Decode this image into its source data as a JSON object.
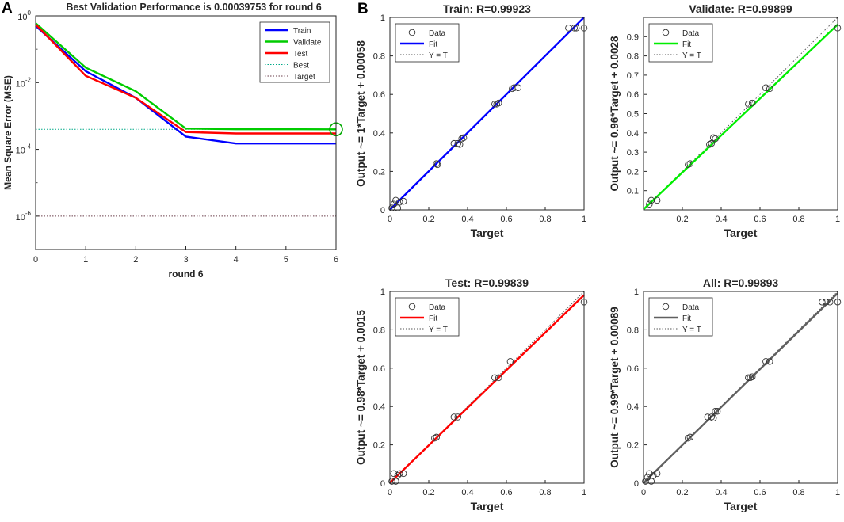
{
  "panels": {
    "a": "A",
    "b": "B"
  },
  "chart_data": [
    {
      "type": "line",
      "title": "Best Validation Performance is 0.00039753 for round 6",
      "xlabel": "round 6",
      "ylabel": "Mean Square Error (MSE)",
      "yscale": "log",
      "xlim": [
        0,
        6
      ],
      "ylim_exp": [
        -7,
        0
      ],
      "x_ticks": [
        "0",
        "1",
        "2",
        "3",
        "4",
        "5",
        "6"
      ],
      "y_ticks": [
        {
          "base": "10",
          "exp": "0",
          "exp_value": 0
        },
        {
          "base": "10",
          "exp": "-2",
          "exp_value": -2
        },
        {
          "base": "10",
          "exp": "-4",
          "exp_value": -4
        },
        {
          "base": "10",
          "exp": "-6",
          "exp_value": -6
        }
      ],
      "x": [
        0,
        1,
        2,
        3,
        4,
        5,
        6
      ],
      "series": [
        {
          "name": "Train",
          "color": "#0000ff",
          "style": "solid",
          "values": [
            0.5,
            0.022,
            0.0035,
            0.00024,
            0.00015,
            0.00015,
            0.00015
          ]
        },
        {
          "name": "Validate",
          "color": "#00cc00",
          "style": "solid",
          "values": [
            0.6,
            0.028,
            0.0055,
            0.00042,
            0.0004,
            0.0004,
            0.00039753
          ]
        },
        {
          "name": "Test",
          "color": "#ff0000",
          "style": "solid",
          "values": [
            0.55,
            0.016,
            0.0035,
            0.00033,
            0.0003,
            0.0003,
            0.0003
          ]
        },
        {
          "name": "Best",
          "color": "#00aa88",
          "style": "dotted"
        },
        {
          "name": "Target",
          "color": "#6a3d4a",
          "style": "dotted"
        }
      ],
      "best": {
        "x": 6,
        "value": 0.00039753
      },
      "target_value": 1e-06,
      "legend_position": "top-right"
    },
    {
      "type": "scatter",
      "title": "Train: R=0.99923",
      "xlabel": "Target",
      "ylabel": "Output ~= 1*Target + 0.00058",
      "fit_slope": 1,
      "fit_intercept": 0.00058,
      "fit_color": "#0000ff",
      "xlim": [
        0,
        1
      ],
      "ylim": [
        0,
        1
      ],
      "x_ticks": [
        "0",
        "0.2",
        "0.4",
        "0.6",
        "0.8",
        "1"
      ],
      "y_ticks": [
        "0",
        "0.2",
        "0.4",
        "0.6",
        "0.8",
        "1"
      ],
      "legend": [
        "Data",
        "Fit",
        "Y = T"
      ],
      "legend_position": "top-left",
      "points": [
        [
          0.01,
          0.01
        ],
        [
          0.02,
          0.03
        ],
        [
          0.03,
          0.05
        ],
        [
          0.04,
          0.01
        ],
        [
          0.05,
          0.04
        ],
        [
          0.07,
          0.045
        ],
        [
          0.24,
          0.24
        ],
        [
          0.245,
          0.235
        ],
        [
          0.33,
          0.345
        ],
        [
          0.35,
          0.345
        ],
        [
          0.36,
          0.34
        ],
        [
          0.37,
          0.37
        ],
        [
          0.38,
          0.375
        ],
        [
          0.54,
          0.55
        ],
        [
          0.55,
          0.55
        ],
        [
          0.56,
          0.555
        ],
        [
          0.63,
          0.63
        ],
        [
          0.64,
          0.635
        ],
        [
          0.66,
          0.635
        ],
        [
          0.92,
          0.945
        ],
        [
          0.95,
          0.945
        ],
        [
          0.96,
          0.945
        ],
        [
          1.0,
          0.945
        ]
      ]
    },
    {
      "type": "scatter",
      "title": "Validate: R=0.99899",
      "xlabel": "Target",
      "ylabel": "Output ~= 0.96*Target + 0.0028",
      "fit_slope": 0.96,
      "fit_intercept": 0.0028,
      "fit_color": "#00ee00",
      "xlim": [
        0,
        1
      ],
      "ylim": [
        0,
        1
      ],
      "x_ticks": [
        "0.2",
        "0.4",
        "0.6",
        "0.8",
        "1"
      ],
      "y_ticks": [
        "0.1",
        "0.2",
        "0.3",
        "0.4",
        "0.5",
        "0.6",
        "0.7",
        "0.8",
        "0.9"
      ],
      "legend": [
        "Data",
        "Fit",
        "Y = T"
      ],
      "legend_position": "top-left",
      "points": [
        [
          0.03,
          0.03
        ],
        [
          0.04,
          0.05
        ],
        [
          0.07,
          0.05
        ],
        [
          0.23,
          0.235
        ],
        [
          0.24,
          0.24
        ],
        [
          0.34,
          0.34
        ],
        [
          0.35,
          0.345
        ],
        [
          0.36,
          0.375
        ],
        [
          0.37,
          0.37
        ],
        [
          0.54,
          0.55
        ],
        [
          0.56,
          0.555
        ],
        [
          0.63,
          0.635
        ],
        [
          0.65,
          0.63
        ],
        [
          1.0,
          0.945
        ]
      ]
    },
    {
      "type": "scatter",
      "title": "Test: R=0.99839",
      "xlabel": "Target",
      "ylabel": "Output ~= 0.98*Target + 0.0015",
      "fit_slope": 0.98,
      "fit_intercept": 0.0015,
      "fit_color": "#ff0000",
      "xlim": [
        0,
        1
      ],
      "ylim": [
        0,
        1
      ],
      "x_ticks": [
        "0",
        "0.2",
        "0.4",
        "0.6",
        "0.8",
        "1"
      ],
      "y_ticks": [
        "0",
        "0.2",
        "0.4",
        "0.6",
        "0.8",
        "1"
      ],
      "legend": [
        "Data",
        "Fit",
        "Y = T"
      ],
      "legend_position": "top-left",
      "points": [
        [
          0.01,
          0.01
        ],
        [
          0.02,
          0.05
        ],
        [
          0.03,
          0.01
        ],
        [
          0.04,
          0.04
        ],
        [
          0.05,
          0.05
        ],
        [
          0.07,
          0.05
        ],
        [
          0.23,
          0.235
        ],
        [
          0.24,
          0.24
        ],
        [
          0.33,
          0.345
        ],
        [
          0.35,
          0.345
        ],
        [
          0.54,
          0.55
        ],
        [
          0.56,
          0.55
        ],
        [
          0.62,
          0.635
        ],
        [
          1.0,
          0.945
        ]
      ]
    },
    {
      "type": "scatter",
      "title": "All: R=0.99893",
      "xlabel": "Target",
      "ylabel": "Output ~= 0.99*Target + 0.00089",
      "fit_slope": 0.99,
      "fit_intercept": 0.00089,
      "fit_color": "#606060",
      "xlim": [
        0,
        1
      ],
      "ylim": [
        0,
        1
      ],
      "x_ticks": [
        "0",
        "0.2",
        "0.4",
        "0.6",
        "0.8",
        "1"
      ],
      "y_ticks": [
        "0",
        "0.2",
        "0.4",
        "0.6",
        "0.8",
        "1"
      ],
      "legend": [
        "Data",
        "Fit",
        "Y = T"
      ],
      "legend_position": "top-left",
      "points": [
        [
          0.01,
          0.01
        ],
        [
          0.02,
          0.03
        ],
        [
          0.03,
          0.05
        ],
        [
          0.04,
          0.01
        ],
        [
          0.05,
          0.04
        ],
        [
          0.07,
          0.05
        ],
        [
          0.23,
          0.235
        ],
        [
          0.24,
          0.24
        ],
        [
          0.33,
          0.345
        ],
        [
          0.35,
          0.345
        ],
        [
          0.36,
          0.34
        ],
        [
          0.37,
          0.375
        ],
        [
          0.38,
          0.375
        ],
        [
          0.54,
          0.55
        ],
        [
          0.55,
          0.55
        ],
        [
          0.56,
          0.555
        ],
        [
          0.63,
          0.635
        ],
        [
          0.65,
          0.635
        ],
        [
          0.92,
          0.945
        ],
        [
          0.94,
          0.945
        ],
        [
          0.96,
          0.945
        ],
        [
          1.0,
          0.945
        ]
      ]
    }
  ]
}
